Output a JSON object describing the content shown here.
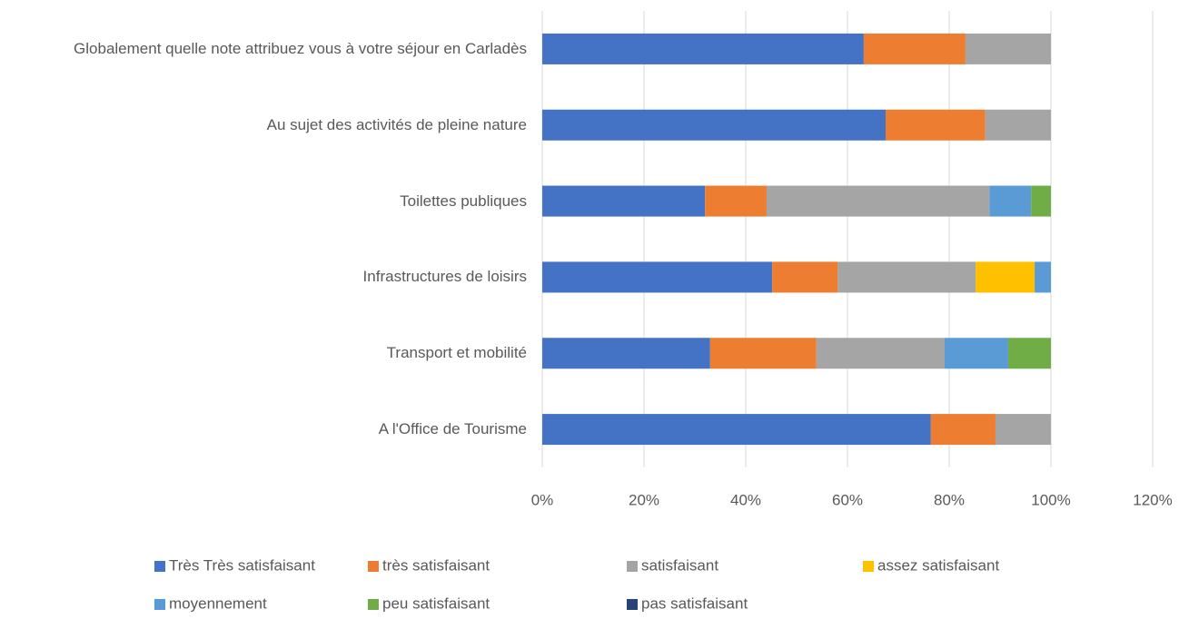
{
  "chart_data": {
    "type": "stacked-bar-horizontal",
    "categories": [
      "Globalement quelle note attribuez vous à votre séjour en Carladès",
      "Au sujet des activités de pleine nature",
      "Toilettes publiques",
      "Infrastructures de loisirs",
      "Transport et mobilité",
      "A l'Office de Tourisme"
    ],
    "series": [
      {
        "name": "Très Très satisfaisant",
        "color": "#4472c4",
        "values": [
          63.2,
          67.5,
          32,
          45.2,
          33,
          76.4
        ]
      },
      {
        "name": "très satisfaisant",
        "color": "#ed7d31",
        "values": [
          20,
          19.6,
          12.1,
          12.9,
          20.9,
          12.7
        ]
      },
      {
        "name": "satisfaisant",
        "color": "#a5a5a5",
        "values": [
          16.8,
          12.9,
          43.8,
          27.1,
          25.2,
          10.9
        ]
      },
      {
        "name": "assez satisfaisant",
        "color": "#ffc000",
        "values": [
          0,
          0,
          0,
          11.6,
          0,
          0
        ]
      },
      {
        "name": "moyennement",
        "color": "#5b9bd5",
        "values": [
          0,
          0,
          8.2,
          3.2,
          12.5,
          0
        ]
      },
      {
        "name": "peu satisfaisant",
        "color": "#70ad47",
        "values": [
          0,
          0,
          3.9,
          0,
          8.4,
          0
        ]
      },
      {
        "name": "pas satisfaisant",
        "color": "#264478",
        "values": [
          0,
          0,
          0,
          0,
          0,
          0
        ]
      }
    ],
    "xlim": [
      0,
      120
    ],
    "xticks": [
      {
        "value": 0,
        "label": "0%"
      },
      {
        "value": 20,
        "label": "20%"
      },
      {
        "value": 40,
        "label": "40%"
      },
      {
        "value": 60,
        "label": "60%"
      },
      {
        "value": 80,
        "label": "80%"
      },
      {
        "value": 100,
        "label": "100%"
      },
      {
        "value": 120,
        "label": "120%"
      }
    ],
    "grid": true,
    "legend": "bottom"
  }
}
